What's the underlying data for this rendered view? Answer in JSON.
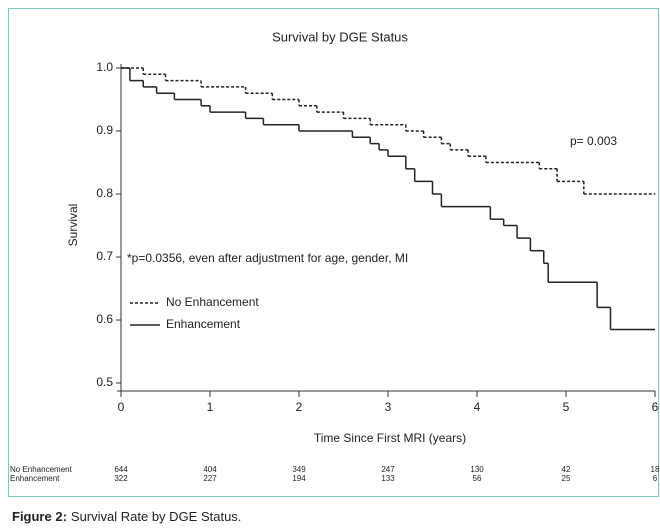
{
  "chart_data": {
    "type": "step",
    "title": "Survival by DGE Status",
    "xlabel": "Time Since First MRI (years)",
    "ylabel": "Survival",
    "xlim": [
      0,
      6
    ],
    "ylim": [
      0.5,
      1
    ],
    "xticks": [
      0,
      1,
      2,
      3,
      4,
      5,
      6
    ],
    "yticks": [
      0.5,
      0.6,
      0.7,
      0.8,
      0.9,
      {
        "value": 1,
        "label": "1.0"
      }
    ],
    "annotations": [
      "p= 0.003",
      "*p=0.0356, even after adjustment for age, gender, MI"
    ],
    "series": [
      {
        "name": "No Enhancement",
        "color": "#222222",
        "dash": true,
        "x": [
          0,
          0.25,
          0.5,
          0.9,
          1.4,
          1.7,
          2.0,
          2.2,
          2.5,
          2.8,
          3.2,
          3.4,
          3.6,
          3.7,
          3.9,
          4.1,
          4.7,
          4.9,
          5.2,
          6
        ],
        "values": [
          1,
          0.99,
          0.98,
          0.97,
          0.96,
          0.95,
          0.94,
          0.93,
          0.92,
          0.91,
          0.9,
          0.89,
          0.88,
          0.87,
          0.86,
          0.85,
          0.84,
          0.82,
          0.8,
          0.8
        ]
      },
      {
        "name": "Enhancement",
        "color": "#222222",
        "dash": false,
        "x": [
          0,
          0.1,
          0.25,
          0.4,
          0.6,
          0.9,
          1.0,
          1.4,
          1.6,
          2.0,
          2.6,
          2.8,
          2.9,
          3.0,
          3.2,
          3.3,
          3.5,
          3.6,
          4.15,
          4.3,
          4.45,
          4.6,
          4.75,
          4.8,
          5.35,
          5.5,
          6
        ],
        "values": [
          1,
          0.98,
          0.97,
          0.96,
          0.95,
          0.94,
          0.93,
          0.92,
          0.91,
          0.9,
          0.89,
          0.88,
          0.87,
          0.86,
          0.84,
          0.82,
          0.8,
          0.78,
          0.76,
          0.75,
          0.73,
          0.71,
          0.69,
          0.66,
          0.62,
          0.585,
          0.585
        ]
      }
    ],
    "at_risk": [
      {
        "name": "No Enhancement",
        "values": [
          644,
          404,
          349,
          247,
          130,
          42,
          18
        ]
      },
      {
        "name": "Enhancement",
        "values": [
          322,
          227,
          194,
          133,
          56,
          25,
          6
        ]
      }
    ]
  },
  "caption": {
    "label": "Figure 2:",
    "text": "Survival Rate by DGE Status."
  }
}
